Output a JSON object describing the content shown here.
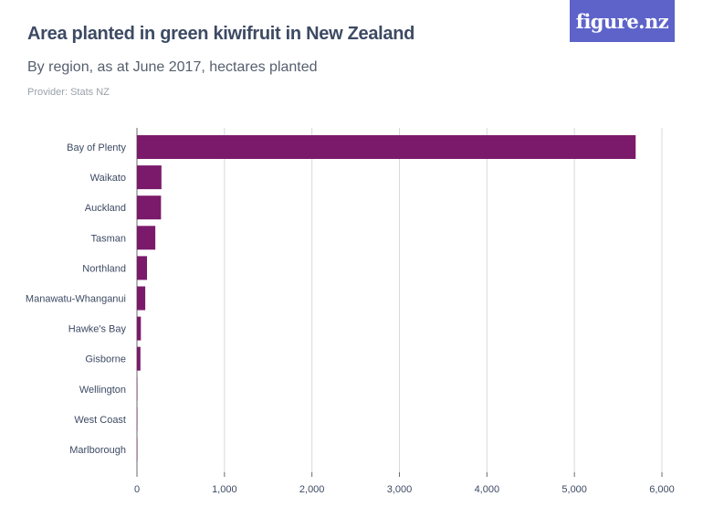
{
  "header": {
    "title": "Area planted in green kiwifruit in New Zealand",
    "subtitle": "By region, as at June 2017, hectares planted",
    "provider": "Provider: Stats NZ",
    "logo_text": "figure.nz"
  },
  "colors": {
    "bar": "#7b1a6b",
    "grid": "#d9d9d9",
    "axis": "#6b6b6b",
    "logo_bg": "#5d63c9"
  },
  "chart_data": {
    "type": "bar",
    "orientation": "horizontal",
    "title": "Area planted in green kiwifruit in New Zealand",
    "subtitle": "By region, as at June 2017, hectares planted",
    "xlabel": "",
    "ylabel": "",
    "categories": [
      "Bay of Plenty",
      "Waikato",
      "Auckland",
      "Tasman",
      "Northland",
      "Manawatu-Whanganui",
      "Hawke's Bay",
      "Gisborne",
      "Wellington",
      "West Coast",
      "Marlborough"
    ],
    "values": [
      5700,
      280,
      275,
      210,
      115,
      95,
      45,
      40,
      5,
      3,
      2
    ],
    "xlim": [
      0,
      6000
    ],
    "xticks": [
      0,
      1000,
      2000,
      3000,
      4000,
      5000,
      6000
    ],
    "xtick_labels": [
      "0",
      "1,000",
      "2,000",
      "3,000",
      "4,000",
      "5,000",
      "6,000"
    ],
    "grid": true,
    "legend": "none"
  }
}
